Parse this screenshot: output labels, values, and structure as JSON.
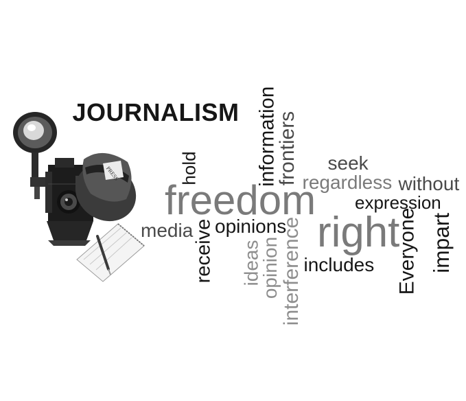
{
  "title": "JOURNALISM",
  "illustration": {
    "hat_band_text": "PRESS",
    "items": [
      "camera-icon",
      "flash-lamp-icon",
      "press-hat-icon",
      "notepad-icon",
      "pen-icon"
    ]
  },
  "words": {
    "information": "information",
    "frontiers": "frontiers",
    "hold": "hold",
    "seek": "seek",
    "regardless": "regardless",
    "without": "without",
    "freedom": "freedom",
    "expression": "expression",
    "media": "media",
    "receive": "receive",
    "opinions": "opinions",
    "right": "right",
    "everyone": "Everyone",
    "impart": "impart",
    "ideas": "ideas",
    "opinion": "opinion",
    "interference": "interference",
    "includes": "includes"
  },
  "colors": {
    "text_dark": "#161616",
    "text_mid": "#4a4a4a",
    "text_gray": "#7a7a7a",
    "text_light": "#8e8e8e",
    "background": "#ffffff"
  }
}
